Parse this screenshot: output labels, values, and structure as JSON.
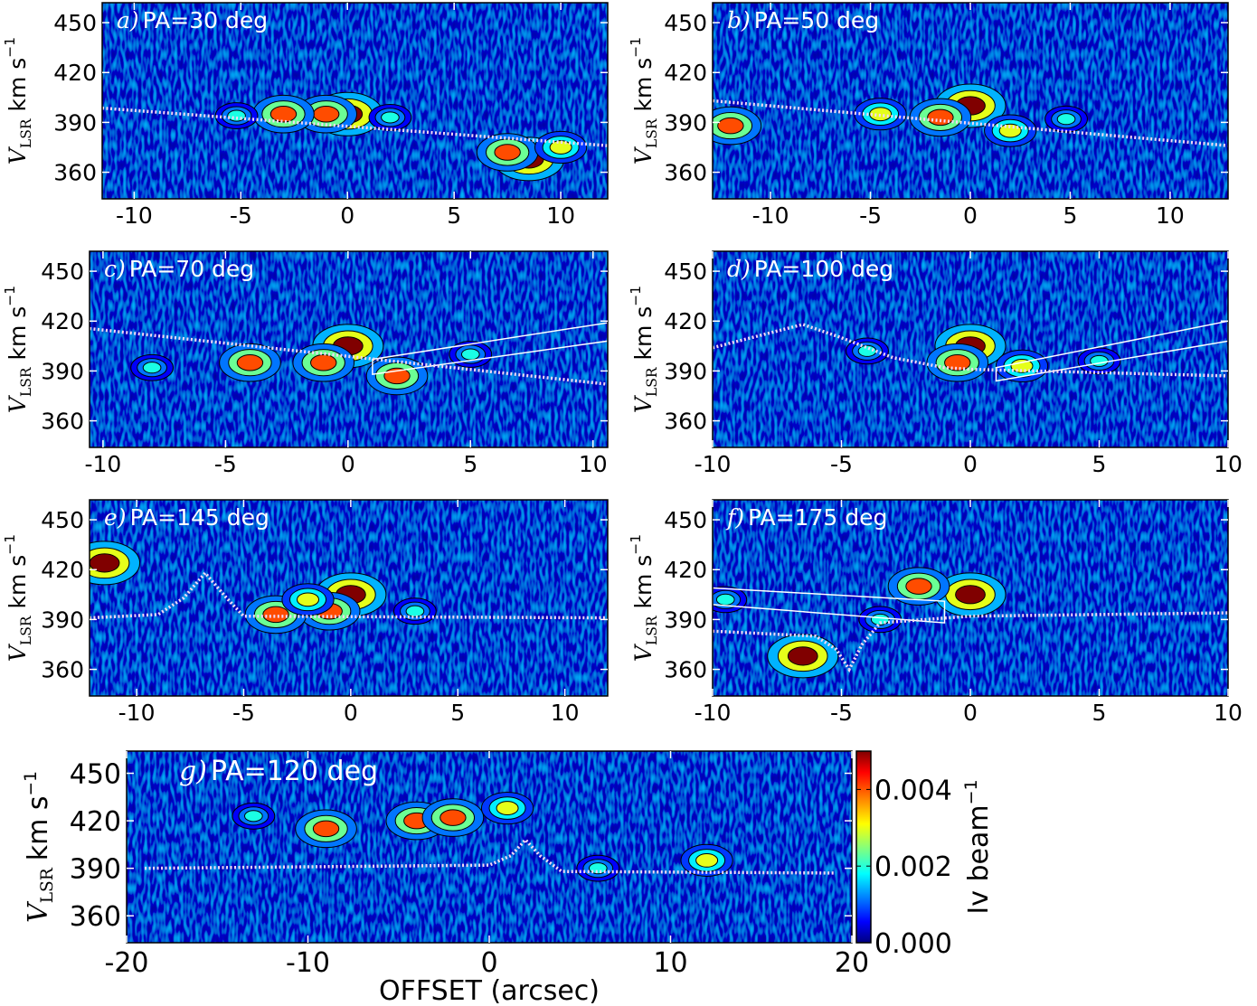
{
  "chart_data": [
    {
      "type": "heatmap",
      "label": "a)",
      "title": "PA=30 deg",
      "ylabel": {
        "symbol": "V",
        "subscript": "LSR",
        "unit": "km s",
        "exponent": "−1"
      },
      "xlim": [
        -11.5,
        12.2
      ],
      "ylim": [
        344,
        462
      ],
      "xticks": [
        -10,
        -5,
        0,
        5,
        10
      ],
      "yticks": [
        360,
        390,
        420,
        450
      ],
      "emission": {
        "x": [
          0,
          -1,
          -3,
          -5.2,
          8.5,
          7.5,
          2,
          10
        ],
        "y": [
          395,
          395,
          395,
          394,
          368,
          372,
          393,
          375
        ],
        "values": [
          0.005,
          0.004,
          0.004,
          0.002,
          0.005,
          0.004,
          0.002,
          0.003
        ]
      },
      "curve": {
        "x": [
          -11.5,
          12.2
        ],
        "y": [
          398.6,
          376
        ]
      }
    },
    {
      "type": "heatmap",
      "label": "b)",
      "title": "PA=50 deg",
      "ylabel": {
        "symbol": "V",
        "subscript": "LSR",
        "unit": "km s",
        "exponent": "−1"
      },
      "xlim": [
        -12.9,
        12.9
      ],
      "ylim": [
        344,
        462
      ],
      "xticks": [
        -10,
        -5,
        0,
        5,
        10
      ],
      "yticks": [
        360,
        390,
        420,
        450
      ],
      "emission": {
        "x": [
          0,
          -1.5,
          -4.5,
          -12,
          2,
          4.8
        ],
        "y": [
          400,
          393,
          395,
          388,
          385,
          392
        ],
        "values": [
          0.005,
          0.004,
          0.003,
          0.004,
          0.003,
          0.002
        ]
      },
      "curve": {
        "x": [
          -12.9,
          12.9
        ],
        "y": [
          403,
          376
        ]
      }
    },
    {
      "type": "heatmap",
      "label": "c)",
      "title": "PA=70 deg",
      "ylabel": {
        "symbol": "V",
        "subscript": "LSR",
        "unit": "km s",
        "exponent": "−1"
      },
      "xlim": [
        -10.55,
        10.6
      ],
      "ylim": [
        344,
        462
      ],
      "xticks": [
        -10,
        -5,
        0,
        5,
        10
      ],
      "yticks": [
        360,
        390,
        420,
        450
      ],
      "emission": {
        "x": [
          0,
          -1,
          -4,
          2,
          -8,
          5
        ],
        "y": [
          405,
          395,
          395,
          387,
          392,
          400
        ],
        "values": [
          0.005,
          0.004,
          0.004,
          0.004,
          0.002,
          0.002
        ]
      },
      "curve": {
        "x": [
          -10.55,
          10.6
        ],
        "y": [
          415.5,
          382
        ]
      },
      "box": {
        "x": [
          1,
          10.6,
          10.6,
          1
        ],
        "y": [
          397,
          419,
          408,
          388
        ]
      }
    },
    {
      "type": "heatmap",
      "label": "d)",
      "title": "PA=100 deg",
      "ylabel": {
        "symbol": "V",
        "subscript": "LSR",
        "unit": "km s",
        "exponent": "−1"
      },
      "xlim": [
        -10,
        10
      ],
      "ylim": [
        344,
        462
      ],
      "xticks": [
        -10,
        -5,
        0,
        5,
        10
      ],
      "yticks": [
        360,
        390,
        420,
        450
      ],
      "emission": {
        "x": [
          0,
          -0.5,
          2,
          -4,
          5
        ],
        "y": [
          405,
          395,
          393,
          402,
          396
        ],
        "values": [
          0.005,
          0.004,
          0.003,
          0.002,
          0.002
        ]
      },
      "curve": {
        "x": [
          -10,
          -8,
          -6.5,
          -5,
          -3,
          -1,
          0,
          5,
          10
        ],
        "y": [
          404,
          412,
          418,
          410,
          398,
          392,
          391,
          389,
          387
        ]
      },
      "box": {
        "x": [
          1,
          10,
          10,
          1
        ],
        "y": [
          392,
          420,
          408,
          384
        ]
      }
    },
    {
      "type": "heatmap",
      "label": "e)",
      "title": "PA=145 deg",
      "ylabel": {
        "symbol": "V",
        "subscript": "LSR",
        "unit": "km s",
        "exponent": "−1"
      },
      "xlim": [
        -12.2,
        12
      ],
      "ylim": [
        344,
        462
      ],
      "xticks": [
        -10,
        -5,
        0,
        5,
        10
      ],
      "yticks": [
        360,
        390,
        420,
        450
      ],
      "emission": {
        "x": [
          0,
          -1,
          -3.5,
          -11.5,
          -2,
          3
        ],
        "y": [
          405,
          395,
          393,
          424,
          402,
          395
        ],
        "values": [
          0.005,
          0.004,
          0.004,
          0.005,
          0.003,
          0.002
        ]
      },
      "curve": {
        "x": [
          -12.2,
          -9,
          -7.8,
          -6.8,
          -5.8,
          -5,
          12
        ],
        "y": [
          391,
          393,
          403,
          418,
          403,
          392,
          391
        ]
      }
    },
    {
      "type": "heatmap",
      "label": "f)",
      "title": "PA=175 deg",
      "ylabel": {
        "symbol": "V",
        "subscript": "LSR",
        "unit": "km s",
        "exponent": "−1"
      },
      "xlim": [
        -10,
        10
      ],
      "ylim": [
        344,
        462
      ],
      "xticks": [
        -10,
        -5,
        0,
        5,
        10
      ],
      "yticks": [
        360,
        390,
        420,
        450
      ],
      "emission": {
        "x": [
          0,
          -2,
          -6.5,
          -3.5,
          -9.5
        ],
        "y": [
          405,
          410,
          368,
          390,
          402
        ],
        "values": [
          0.005,
          0.004,
          0.005,
          0.002,
          0.002
        ]
      },
      "curve": {
        "x": [
          -10,
          -6,
          -5.2,
          -4.7,
          -4.2,
          -3.5,
          0,
          10
        ],
        "y": [
          383,
          380,
          372,
          360,
          375,
          388,
          392,
          394
        ]
      },
      "box": {
        "x": [
          -10,
          -1,
          -1,
          -10
        ],
        "y": [
          409,
          401,
          388,
          399
        ]
      }
    },
    {
      "type": "heatmap",
      "label": "g)",
      "title": "PA=120 deg",
      "ylabel": {
        "symbol": "V",
        "subscript": "LSR",
        "unit": "km s",
        "exponent": "−1"
      },
      "xlabel": "OFFSET (arcsec)",
      "xlim": [
        -20,
        20
      ],
      "ylim": [
        343,
        464
      ],
      "xticks": [
        -20,
        -10,
        0,
        10,
        20
      ],
      "yticks": [
        360,
        390,
        420,
        450
      ],
      "emission": {
        "x": [
          -9,
          -4,
          -2,
          -13,
          12,
          6,
          1
        ],
        "y": [
          415,
          420,
          422,
          423,
          395,
          390,
          428
        ],
        "values": [
          0.004,
          0.004,
          0.004,
          0.002,
          0.003,
          0.002,
          0.003
        ]
      },
      "curve": {
        "x": [
          -19,
          0,
          1.2,
          2,
          2.8,
          4,
          19
        ],
        "y": [
          390,
          392,
          398,
          408,
          398,
          388,
          387
        ]
      },
      "colorbar": {
        "label": "Iv beam",
        "exponent": "−1",
        "clim": [
          0,
          0.005
        ],
        "ticks": [
          {
            "value": 0,
            "label": "0.000"
          },
          {
            "value": 0.002,
            "label": "0.002"
          },
          {
            "value": 0.004,
            "label": "0.004"
          }
        ]
      }
    }
  ]
}
